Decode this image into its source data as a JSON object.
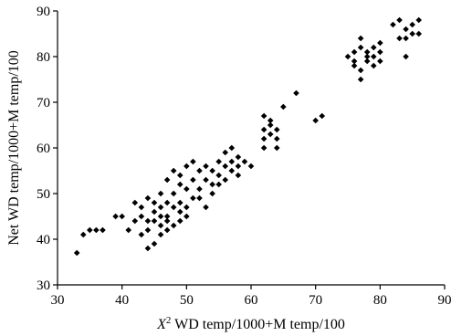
{
  "chart_data": {
    "type": "scatter",
    "title": "",
    "xlabel_prefix": "X",
    "xlabel_sup": "2",
    "xlabel_rest": " WD temp/1000+M temp/100",
    "ylabel": "Net WD temp/1000+M temp/100",
    "xlim": [
      30,
      90
    ],
    "ylim": [
      30,
      90
    ],
    "xticks": [
      30,
      40,
      50,
      60,
      70,
      80,
      90
    ],
    "yticks": [
      30,
      40,
      50,
      60,
      70,
      80,
      90
    ],
    "xtick_labels": [
      "30",
      "40",
      "50",
      "60",
      "70",
      "80",
      "90"
    ],
    "ytick_labels": [
      "30",
      "40",
      "50",
      "60",
      "70",
      "80",
      "90"
    ],
    "grid": false,
    "marker": "diamond",
    "color": "#000000",
    "points": [
      [
        33,
        37
      ],
      [
        34,
        41
      ],
      [
        35,
        42
      ],
      [
        36,
        42
      ],
      [
        37,
        42
      ],
      [
        39,
        45
      ],
      [
        40,
        45
      ],
      [
        41,
        42
      ],
      [
        42,
        44
      ],
      [
        42,
        48
      ],
      [
        43,
        47
      ],
      [
        43,
        45
      ],
      [
        43,
        41
      ],
      [
        44,
        44
      ],
      [
        44,
        49
      ],
      [
        44,
        38
      ],
      [
        44,
        42
      ],
      [
        45,
        46
      ],
      [
        45,
        44
      ],
      [
        45,
        39
      ],
      [
        45,
        48
      ],
      [
        46,
        45
      ],
      [
        46,
        43
      ],
      [
        46,
        41
      ],
      [
        46,
        47
      ],
      [
        46,
        50
      ],
      [
        47,
        48
      ],
      [
        47,
        44
      ],
      [
        47,
        42
      ],
      [
        47,
        53
      ],
      [
        47,
        45
      ],
      [
        48,
        47
      ],
      [
        48,
        50
      ],
      [
        48,
        55
      ],
      [
        48,
        43
      ],
      [
        49,
        44
      ],
      [
        49,
        46
      ],
      [
        49,
        48
      ],
      [
        49,
        52
      ],
      [
        49,
        54
      ],
      [
        50,
        47
      ],
      [
        50,
        51
      ],
      [
        50,
        45
      ],
      [
        50,
        56
      ],
      [
        51,
        49
      ],
      [
        51,
        53
      ],
      [
        51,
        57
      ],
      [
        52,
        49
      ],
      [
        52,
        51
      ],
      [
        52,
        55
      ],
      [
        53,
        47
      ],
      [
        53,
        53
      ],
      [
        53,
        56
      ],
      [
        54,
        52
      ],
      [
        54,
        55
      ],
      [
        54,
        50
      ],
      [
        55,
        54
      ],
      [
        55,
        57
      ],
      [
        55,
        52
      ],
      [
        56,
        53
      ],
      [
        56,
        56
      ],
      [
        56,
        59
      ],
      [
        57,
        57
      ],
      [
        57,
        55
      ],
      [
        57,
        60
      ],
      [
        58,
        54
      ],
      [
        58,
        58
      ],
      [
        58,
        56
      ],
      [
        59,
        57
      ],
      [
        60,
        56
      ],
      [
        62,
        67
      ],
      [
        62,
        64
      ],
      [
        62,
        60
      ],
      [
        62,
        62
      ],
      [
        63,
        63
      ],
      [
        63,
        66
      ],
      [
        63,
        65
      ],
      [
        64,
        64
      ],
      [
        64,
        60
      ],
      [
        64,
        62
      ],
      [
        65,
        69
      ],
      [
        67,
        72
      ],
      [
        70,
        66
      ],
      [
        71,
        67
      ],
      [
        75,
        80
      ],
      [
        76,
        79
      ],
      [
        76,
        78
      ],
      [
        76,
        81
      ],
      [
        77,
        82
      ],
      [
        77,
        84
      ],
      [
        77,
        77
      ],
      [
        77,
        75
      ],
      [
        78,
        80
      ],
      [
        78,
        79
      ],
      [
        78,
        81
      ],
      [
        79,
        80
      ],
      [
        79,
        78
      ],
      [
        79,
        82
      ],
      [
        80,
        79
      ],
      [
        80,
        81
      ],
      [
        80,
        83
      ],
      [
        82,
        87
      ],
      [
        83,
        84
      ],
      [
        83,
        88
      ],
      [
        84,
        86
      ],
      [
        84,
        80
      ],
      [
        85,
        85
      ],
      [
        85,
        87
      ],
      [
        86,
        85
      ],
      [
        86,
        88
      ],
      [
        84,
        84
      ]
    ]
  }
}
